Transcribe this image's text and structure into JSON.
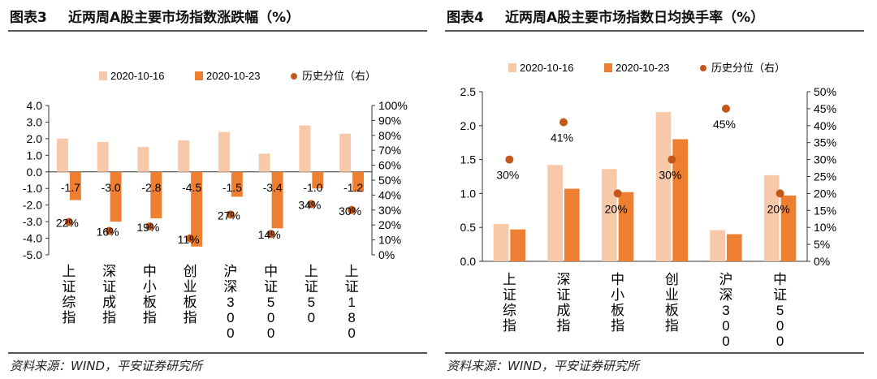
{
  "charts": [
    {
      "figure_label": "图表3",
      "title": "近两周A股主要市场指数涨跌幅（%）",
      "source": "资料来源：WIND，平安证券研究所"
    },
    {
      "figure_label": "图表4",
      "title": "近两周A股主要市场指数日均换手率（%）",
      "source": "资料来源：WIND，平安证券研究所"
    }
  ],
  "colors": {
    "light": "#f7c9a8",
    "dark": "#ee7f31",
    "dot": "#c4581a"
  },
  "chart_data": [
    {
      "type": "bar",
      "categories": [
        "上证综指",
        "深证成指",
        "中小板指",
        "创业板指",
        "沪深300",
        "中证500",
        "上证50",
        "上证180"
      ],
      "series": [
        {
          "name": "2020-10-16",
          "values": [
            2.0,
            1.8,
            1.5,
            1.9,
            2.4,
            1.1,
            2.8,
            2.3
          ]
        },
        {
          "name": "2020-10-23",
          "values": [
            -1.7,
            -3.0,
            -2.8,
            -4.5,
            -1.5,
            -3.4,
            -1.0,
            -1.2
          ]
        }
      ],
      "value_labels": [
        "-1.7",
        "-3.0",
        "-2.8",
        "-4.5",
        "-1.5",
        "-3.4",
        "-1.0",
        "-1.2"
      ],
      "secondary_series": {
        "name": "历史分位（右）",
        "values": [
          22,
          16,
          19,
          11,
          27,
          14,
          34,
          30
        ]
      },
      "secondary_labels": [
        "22%",
        "16%",
        "19%",
        "11%",
        "27%",
        "14%",
        "34%",
        "30%"
      ],
      "ylim": [
        -5,
        4
      ],
      "yticks": [
        "4.0",
        "3.0",
        "2.0",
        "1.0",
        "0.0",
        "-1.0",
        "-2.0",
        "-3.0",
        "-4.0",
        "-5.0"
      ],
      "y2lim": [
        0,
        100
      ],
      "y2ticks": [
        "100%",
        "90%",
        "80%",
        "70%",
        "60%",
        "50%",
        "40%",
        "30%",
        "20%",
        "10%",
        "0%"
      ],
      "legend": [
        "2020-10-16",
        "2020-10-23",
        "历史分位（右）"
      ]
    },
    {
      "type": "bar",
      "categories": [
        "上证综指",
        "深证成指",
        "中小板指",
        "创业板指",
        "沪深300",
        "中证500"
      ],
      "series": [
        {
          "name": "2020-10-16",
          "values": [
            0.55,
            1.42,
            1.36,
            2.2,
            0.46,
            1.27
          ]
        },
        {
          "name": "2020-10-23",
          "values": [
            0.47,
            1.07,
            1.02,
            1.8,
            0.4,
            0.97
          ]
        }
      ],
      "secondary_series": {
        "name": "历史分位（右）",
        "values": [
          30,
          41,
          20,
          30,
          45,
          20
        ]
      },
      "secondary_labels": [
        "30%",
        "41%",
        "20%",
        "30%",
        "45%",
        "20%"
      ],
      "ylim": [
        0,
        2.5
      ],
      "yticks": [
        "2.5",
        "2.0",
        "1.5",
        "1.0",
        "0.5",
        "0.0"
      ],
      "y2lim": [
        0,
        50
      ],
      "y2ticks": [
        "50%",
        "45%",
        "40%",
        "35%",
        "30%",
        "25%",
        "20%",
        "15%",
        "10%",
        "5%",
        "0%"
      ],
      "legend": [
        "2020-10-16",
        "2020-10-23",
        "历史分位（右）"
      ]
    }
  ]
}
